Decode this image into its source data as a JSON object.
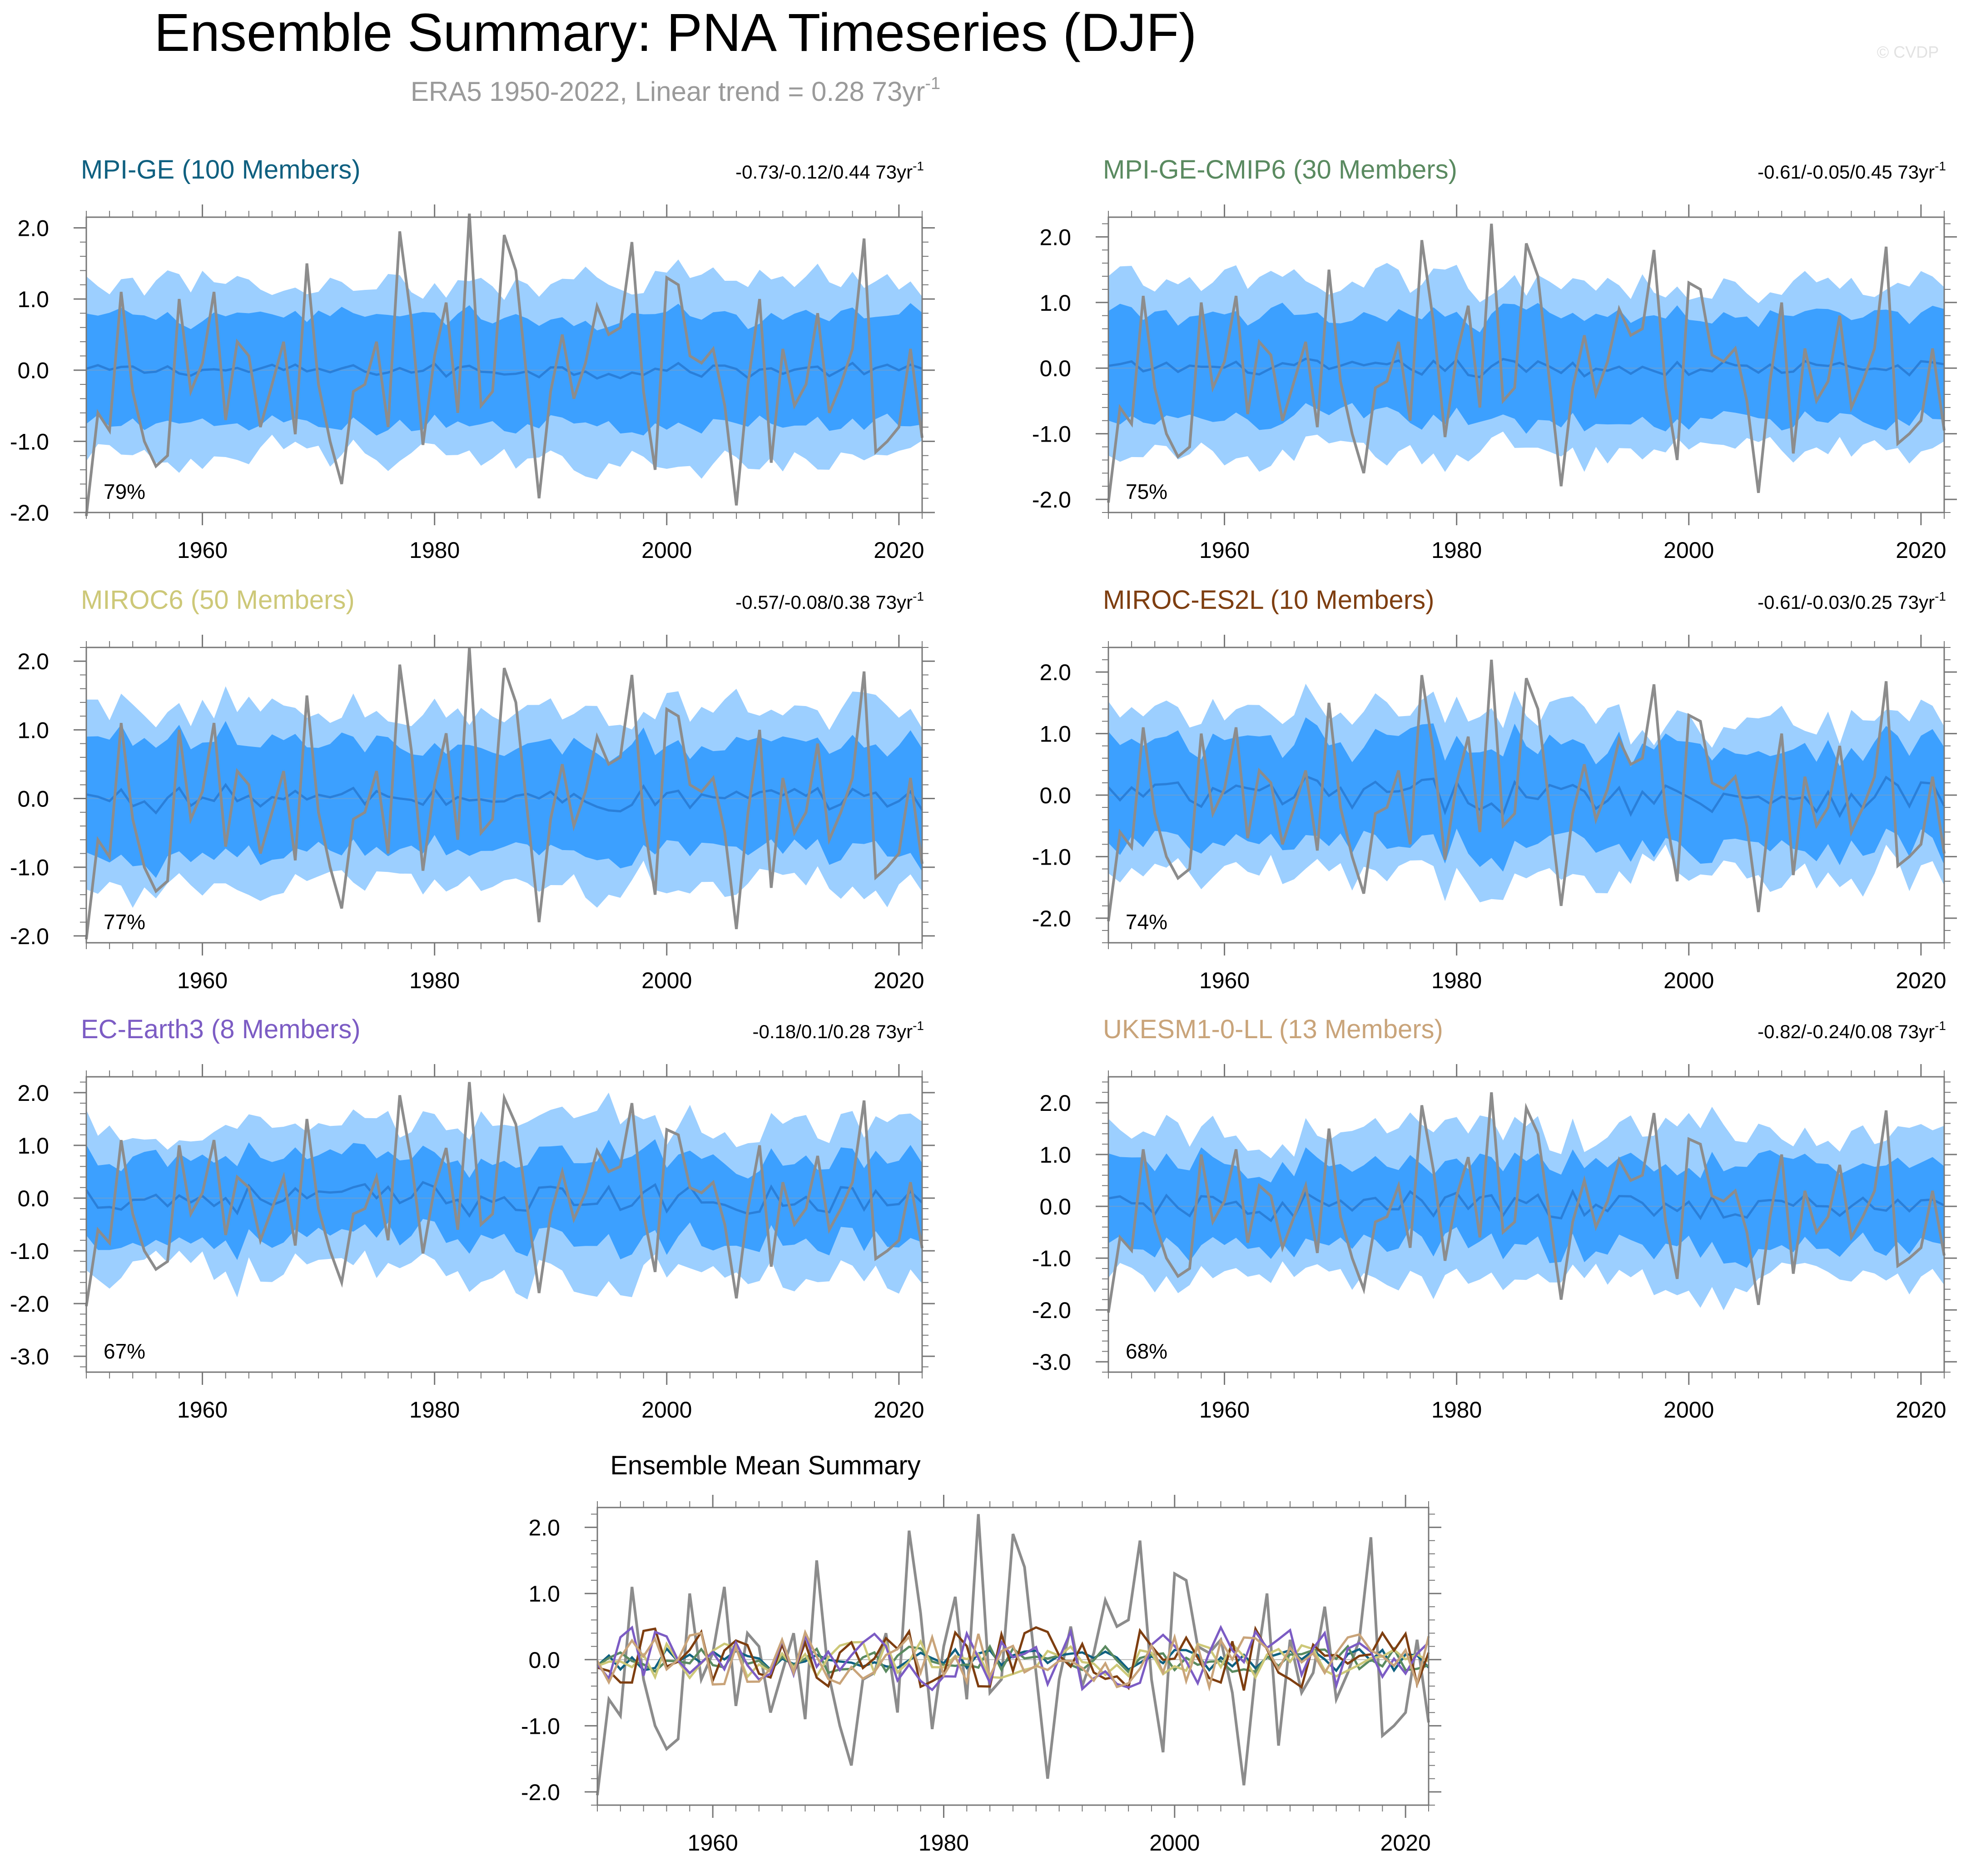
{
  "title": "Ensemble Summary: PNA Timeseries (DJF)",
  "subtitle": {
    "main": "ERA5 1950-2022, Linear trend = 0.28 73yr",
    "sup": "-1"
  },
  "watermark": "© CVDP",
  "colors": {
    "outer_band": "#9ccfff",
    "inner_band": "#3ca0ff",
    "ensemble_mean": "#2a7fd9",
    "observed": "#8c8c8c",
    "zero_line": "#7f9fbf",
    "axis": "#777777"
  },
  "x_ticks": [
    1960,
    1980,
    2000,
    2020
  ],
  "chart_data": [
    {
      "type": "area",
      "name": "MPI-GE",
      "label": "MPI-GE (100 Members)",
      "label_color": "#0f6080",
      "trend_text": "-0.73/-0.12/0.44 73yr",
      "trend_sup": "-1",
      "pct": "79%",
      "xlim": [
        1950,
        2022
      ],
      "ylim": [
        -2.0,
        2.15
      ],
      "yticks": [
        2.0,
        1.0,
        0.0,
        -1.0,
        -2.0
      ],
      "y_tick_labels": [
        "2.0",
        "1.0",
        "0.0",
        "-1.0",
        "-2.0"
      ],
      "amp": {
        "outer": 1.25,
        "inner": 0.75,
        "mean": 0.12,
        "obs": 1.0
      }
    },
    {
      "type": "area",
      "name": "MPI-GE-CMIP6",
      "label": "MPI-GE-CMIP6 (30 Members)",
      "label_color": "#5a8a60",
      "trend_text": "-0.61/-0.05/0.45 73yr",
      "trend_sup": "-1",
      "pct": "75%",
      "xlim": [
        1950,
        2022
      ],
      "ylim": [
        -2.2,
        2.3
      ],
      "yticks": [
        2.0,
        1.0,
        0.0,
        -1.0,
        -2.0
      ],
      "y_tick_labels": [
        "2.0",
        "1.0",
        "0.0",
        "-1.0",
        "-2.0"
      ],
      "amp": {
        "outer": 1.3,
        "inner": 0.8,
        "mean": 0.15,
        "obs": 1.0
      }
    },
    {
      "type": "area",
      "name": "MIROC6",
      "label": "MIROC6 (50 Members)",
      "label_color": "#cdc878",
      "trend_text": "-0.57/-0.08/0.38 73yr",
      "trend_sup": "-1",
      "pct": "77%",
      "xlim": [
        1950,
        2022
      ],
      "ylim": [
        -2.1,
        2.2
      ],
      "yticks": [
        2.0,
        1.0,
        0.0,
        -1.0,
        -2.0
      ],
      "y_tick_labels": [
        "2.0",
        "1.0",
        "0.0",
        "-1.0",
        "-2.0"
      ],
      "amp": {
        "outer": 1.3,
        "inner": 0.8,
        "mean": 0.2,
        "obs": 1.0
      }
    },
    {
      "type": "area",
      "name": "MIROC-ES2L",
      "label": "MIROC-ES2L (10 Members)",
      "label_color": "#7e3e10",
      "trend_text": "-0.61/-0.03/0.25 73yr",
      "trend_sup": "-1",
      "pct": "74%",
      "xlim": [
        1950,
        2022
      ],
      "ylim": [
        -2.4,
        2.4
      ],
      "yticks": [
        2.0,
        1.0,
        0.0,
        -1.0,
        -2.0
      ],
      "y_tick_labels": [
        "2.0",
        "1.0",
        "0.0",
        "-1.0",
        "-2.0"
      ],
      "amp": {
        "outer": 1.3,
        "inner": 0.85,
        "mean": 0.35,
        "obs": 1.0
      }
    },
    {
      "type": "area",
      "name": "EC-Earth3",
      "label": "EC-Earth3 (8 Members)",
      "label_color": "#7c5cc4",
      "trend_text": "-0.18/0.1/0.28 73yr",
      "trend_sup": "-1",
      "pct": "67%",
      "xlim": [
        1950,
        2022
      ],
      "ylim": [
        -3.3,
        2.3
      ],
      "yticks": [
        2.0,
        1.0,
        0.0,
        -1.0,
        -2.0,
        -3.0
      ],
      "y_tick_labels": [
        "2.0",
        "1.0",
        "0.0",
        "-1.0",
        "-2.0",
        "-3.0"
      ],
      "amp": {
        "outer": 1.4,
        "inner": 0.8,
        "mean": 0.35,
        "obs": 1.0
      }
    },
    {
      "type": "area",
      "name": "UKESM1-0-LL",
      "label": "UKESM1-0-LL (13 Members)",
      "label_color": "#c9a47a",
      "trend_text": "-0.82/-0.24/0.08 73yr",
      "trend_sup": "-1",
      "pct": "68%",
      "xlim": [
        1950,
        2022
      ],
      "ylim": [
        -3.2,
        2.5
      ],
      "yticks": [
        2.0,
        1.0,
        0.0,
        -1.0,
        -2.0,
        -3.0
      ],
      "y_tick_labels": [
        "2.0",
        "1.0",
        "0.0",
        "-1.0",
        "-2.0",
        "-3.0"
      ],
      "amp": {
        "outer": 1.4,
        "inner": 0.8,
        "mean": 0.3,
        "obs": 1.0
      }
    },
    {
      "type": "line",
      "name": "Ensemble Mean Summary",
      "title": "Ensemble Mean Summary",
      "xlim": [
        1950,
        2022
      ],
      "ylim": [
        -2.2,
        2.3
      ],
      "yticks": [
        2.0,
        1.0,
        0.0,
        -1.0,
        -2.0
      ],
      "y_tick_labels": [
        "2.0",
        "1.0",
        "0.0",
        "-1.0",
        "-2.0"
      ],
      "series": [
        {
          "name": "ERA5",
          "color": "#8c8c8c"
        },
        {
          "name": "MPI-GE",
          "color": "#0f6080",
          "amp": 0.12
        },
        {
          "name": "MPI-GE-CMIP6",
          "color": "#5a8a60",
          "amp": 0.15
        },
        {
          "name": "MIROC6",
          "color": "#cdc878",
          "amp": 0.2
        },
        {
          "name": "MIROC-ES2L",
          "color": "#7e3e10",
          "amp": 0.35
        },
        {
          "name": "EC-Earth3",
          "color": "#7c5cc4",
          "amp": 0.35
        },
        {
          "name": "UKESM1-0-LL",
          "color": "#c9a47a",
          "amp": 0.3
        }
      ]
    }
  ],
  "era5_pna": [
    -2.05,
    -0.6,
    -0.85,
    1.1,
    -0.3,
    -1.0,
    -1.35,
    -1.2,
    1.0,
    -0.3,
    0.1,
    1.1,
    -0.7,
    0.4,
    0.2,
    -0.8,
    -0.2,
    0.4,
    -0.9,
    1.5,
    -0.2,
    -1.0,
    -1.6,
    -0.3,
    -0.2,
    0.4,
    -0.8,
    1.95,
    0.7,
    -1.05,
    0.2,
    0.95,
    -0.6,
    2.2,
    -0.5,
    -0.3,
    1.9,
    1.4,
    -0.2,
    -1.8,
    -0.3,
    0.5,
    -0.4,
    0.1,
    0.9,
    0.5,
    0.6,
    1.8,
    -0.3,
    -1.4,
    1.3,
    1.2,
    0.2,
    0.1,
    0.3,
    -0.5,
    -1.9,
    -0.2,
    1.0,
    -1.3,
    0.3,
    -0.5,
    -0.2,
    0.8,
    -0.6,
    -0.2,
    0.3,
    1.85,
    -1.15,
    -1.0,
    -0.8,
    0.3,
    -0.95
  ]
}
